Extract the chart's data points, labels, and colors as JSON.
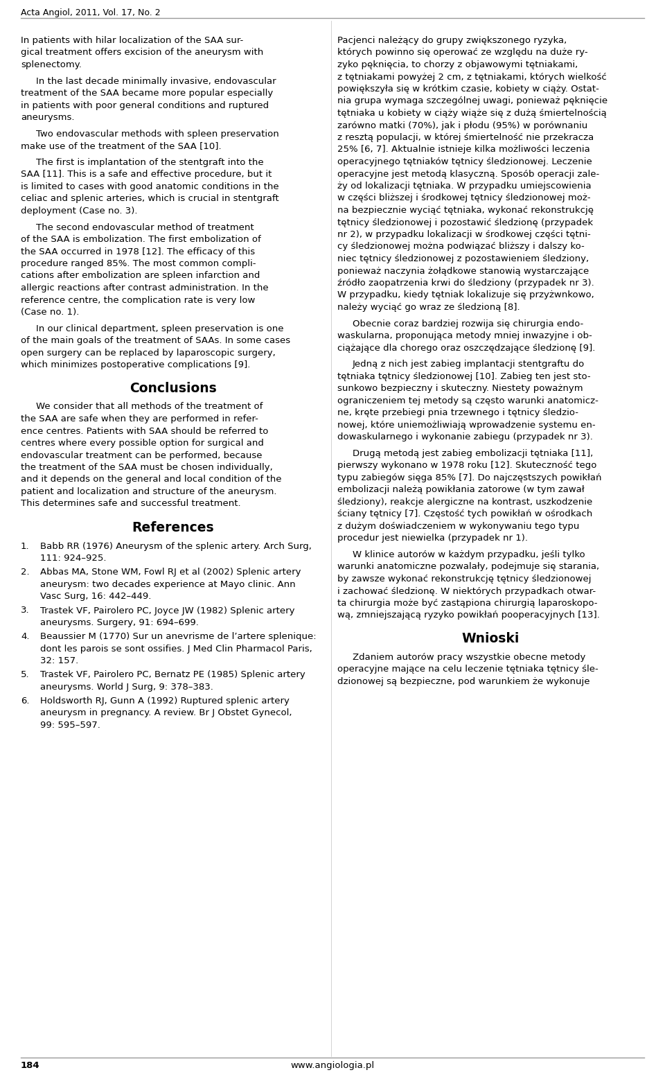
{
  "page_header": "Acta Angiol, 2011, Vol. 17, No. 2",
  "page_number": "184",
  "website": "www.angiologia.pl",
  "background_color": "#ffffff",
  "text_color": "#000000",
  "body_fontsize": 9.5,
  "title_fontsize": 13.5,
  "header_fontsize": 9.0,
  "ref_fontsize": 9.5,
  "left_paragraphs": [
    {
      "indent": false,
      "lines": [
        "In patients with hilar localization of the SAA sur-",
        "gical treatment offers excision of the aneurysm with",
        "splenectomy."
      ]
    },
    {
      "indent": true,
      "lines": [
        "In the last decade minimally invasive, endovascular",
        "treatment of the SAA became more popular especially",
        "in patients with poor general conditions and ruptured",
        "aneurysms."
      ]
    },
    {
      "indent": true,
      "lines": [
        "Two endovascular methods with spleen preservation",
        "make use of the treatment of the SAA [10]."
      ]
    },
    {
      "indent": true,
      "lines": [
        "The first is implantation of the stentgraft into the",
        "SAA [11]. This is a safe and effective procedure, but it",
        "is limited to cases with good anatomic conditions in the",
        "celiac and splenic arteries, which is crucial in stentgraft",
        "deployment (Case no. 3)."
      ]
    },
    {
      "indent": true,
      "lines": [
        "The second endovascular method of treatment",
        "of the SAA is embolization. The first embolization of",
        "the SAA occurred in 1978 [12]. The efficacy of this",
        "procedure ranged 85%. The most common compli-",
        "cations after embolization are spleen infarction and",
        "allergic reactions after contrast administration. In the",
        "reference centre, the complication rate is very low",
        "(Case no. 1)."
      ]
    },
    {
      "indent": true,
      "lines": [
        "In our clinical department, spleen preservation is one",
        "of the main goals of the treatment of SAAs. In some cases",
        "open surgery can be replaced by laparoscopic surgery,",
        "which minimizes postoperative complications [9]."
      ]
    }
  ],
  "conclusions_title": "Conclusions",
  "conclusions_indent": true,
  "conclusions_lines": [
    "We consider that all methods of the treatment of",
    "the SAA are safe when they are performed in refer-",
    "ence centres. Patients with SAA should be referred to",
    "centres where every possible option for surgical and",
    "endovascular treatment can be performed, because",
    "the treatment of the SAA must be chosen individually,",
    "and it depends on the general and local condition of the",
    "patient and localization and structure of the aneurysm.",
    "This determines safe and successful treatment."
  ],
  "references_title": "References",
  "references_entries": [
    {
      "num": "1.",
      "lines": [
        "Babb RR (1976) Aneurysm of the splenic artery. Arch Surg,",
        "111: 924–925."
      ]
    },
    {
      "num": "2.",
      "lines": [
        "Abbas MA, Stone WM, Fowl RJ et al (2002) Splenic artery",
        "aneurysm: two decades experience at Mayo clinic. Ann",
        "Vasc Surg, 16: 442–449."
      ]
    },
    {
      "num": "3.",
      "lines": [
        "Trastek VF, Pairolero PC, Joyce JW (1982) Splenic artery",
        "aneurysms. Surgery, 91: 694–699."
      ]
    },
    {
      "num": "4.",
      "lines": [
        "Beaussier M (1770) Sur un anevrisme de l’artere splenique:",
        "dont les parois se sont ossifies. J Med Clin Pharmacol Paris,",
        "32: 157."
      ]
    },
    {
      "num": "5.",
      "lines": [
        "Trastek VF, Pairolero PC, Bernatz PE (1985) Splenic artery",
        "aneurysms. World J Surg, 9: 378–383."
      ]
    },
    {
      "num": "6.",
      "lines": [
        "Holdsworth RJ, Gunn A (1992) Ruptured splenic artery",
        "aneurysm in pregnancy. A review. Br J Obstet Gynecol,",
        "99: 595–597."
      ]
    }
  ],
  "right_paragraphs": [
    {
      "indent": false,
      "lines": [
        "Pacjenci należący do grupy zwiększonego ryzyka,",
        "których powinno się operować ze względu na duże ry-",
        "zyko pęknięcia, to chorzy z objawowymi tętniakami,",
        "z tętniakami powyżej 2 cm, z tętniakami, których wielkość",
        "powiększyła się w krótkim czasie, kobiety w ciąży. Ostat-",
        "nia grupa wymaga szczególnej uwagi, ponieważ pęknięcie",
        "tętniaka u kobiety w ciąży wiąże się z dużą śmiertelnością",
        "zarówno matki (70%), jak i płodu (95%) w porównaniu",
        "z resztą populacji, w której śmiertelność nie przekracza",
        "25% [6, 7]. Aktualnie istnieje kilka możliwości leczenia",
        "operacyjnego tętniaków tętnicy śledzionowej. Leczenie",
        "operacyjne jest metodą klasyczną. Sposób operacji zale-",
        "ży od lokalizacji tętniaka. W przypadku umiejscowienia",
        "w części bliższej i środkowej tętnicy śledzionowej moż-",
        "na bezpiecznie wyciąć tętniaka, wykonać rekonstrukcję",
        "tętnicy śledzionowej i pozostawić śledzionę (przypadek",
        "nr 2), w przypadku lokalizacji w środkowej części tętni-",
        "cy śledzionowej można podwiązać bliższy i dalszy ko-",
        "niec tętnicy śledzionowej z pozostawieniem śledziony,",
        "ponieważ naczynia żołądkowe stanowią wystarczające",
        "źródło zaopatrzenia krwi do śledziony (przypadek nr 3).",
        "W przypadku, kiedy tętniak lokalizuje się przyżwnkowo,",
        "należy wyciąć go wraz ze śledzioną [8]."
      ]
    },
    {
      "indent": true,
      "lines": [
        "Obecnie coraz bardziej rozwija się chirurgia endo-",
        "waskularna, proponująca metody mniej inwazyjne i ob-",
        "ciążające dla chorego oraz oszczędzające śledzionę [9]."
      ]
    },
    {
      "indent": true,
      "lines": [
        "Jedną z nich jest zabieg implantacji stentgraftu do",
        "tętniaka tętnicy śledzionowej [10]. Zabieg ten jest sto-",
        "sunkowo bezpieczny i skuteczny. Niestety poważnym",
        "ograniczeniem tej metody są często warunki anatomicz-",
        "ne, kręte przebiegi pnia trzewnego i tętnicy śledzio-",
        "nowej, które uniemożliwiają wprowadzenie systemu en-",
        "dowaskularnego i wykonanie zabiegu (przypadek nr 3)."
      ]
    },
    {
      "indent": true,
      "lines": [
        "Drugą metodą jest zabieg embolizacji tętniaka [11],",
        "pierwszy wykonano w 1978 roku [12]. Skuteczność tego",
        "typu zabiegów sięga 85% [7]. Do najczęstszych powikłań",
        "embolizacji należą powikłania zatorowe (w tym zawał",
        "śledziony), reakcje alergiczne na kontrast, uszkodzenie",
        "ściany tętnicy [7]. Częstość tych powikłań w ośrodkach",
        "z dużym doświadczeniem w wykonywaniu tego typu",
        "procedur jest niewielka (przypadek nr 1)."
      ]
    },
    {
      "indent": true,
      "lines": [
        "W klinice autorów w każdym przypadku, jeśli tylko",
        "warunki anatomiczne pozwalały, podejmuje się starania,",
        "by zawsze wykonać rekonstrukcję tętnicy śledzionowej",
        "i zachować śledzionę. W niektórych przypadkach otwar-",
        "ta chirurgia może być zastąpiona chirurgią laparoskopo-",
        "wą, zmniejszającą ryzyko powikłań pooperacyjnych [13]."
      ]
    }
  ],
  "wnioski_title": "Wnioski",
  "wnioski_lines": [
    "Zdaniem autorów pracy wszystkie obecne metody",
    "operacyjne mające na celu leczenie tętniaka tętnicy śle-",
    "dzionowej są bezpieczne, pod warunkiem że wykonuje"
  ]
}
